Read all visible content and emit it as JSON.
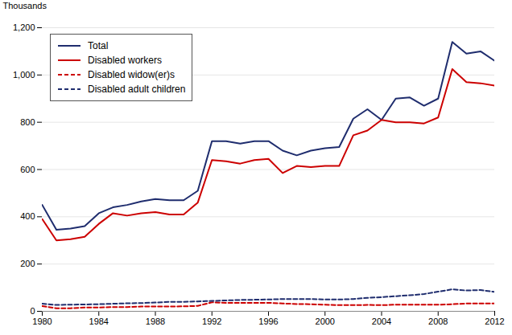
{
  "chart_data": {
    "type": "line",
    "ylabel": "Thousands",
    "x": [
      1980,
      1981,
      1982,
      1983,
      1984,
      1985,
      1986,
      1987,
      1988,
      1989,
      1990,
      1991,
      1992,
      1993,
      1994,
      1995,
      1996,
      1997,
      1998,
      1999,
      2000,
      2001,
      2002,
      2003,
      2004,
      2005,
      2006,
      2007,
      2008,
      2009,
      2010,
      2011,
      2012
    ],
    "series": [
      {
        "name": "Total",
        "color": "#1f2d6e",
        "line_style": "solid",
        "values": [
          450,
          345,
          350,
          360,
          415,
          440,
          450,
          465,
          475,
          470,
          470,
          510,
          720,
          720,
          710,
          720,
          720,
          680,
          660,
          680,
          690,
          695,
          815,
          855,
          810,
          900,
          905,
          870,
          900,
          1140,
          1090,
          1100,
          1060
        ]
      },
      {
        "name": "Disabled workers",
        "color": "#cc0000",
        "line_style": "solid",
        "values": [
          390,
          300,
          305,
          315,
          370,
          415,
          405,
          415,
          420,
          410,
          410,
          460,
          640,
          635,
          625,
          640,
          645,
          585,
          615,
          610,
          615,
          615,
          745,
          765,
          810,
          800,
          800,
          795,
          820,
          1025,
          970,
          965,
          955
        ]
      },
      {
        "name": "Disabled widow(er)s",
        "color": "#cc0000",
        "line_style": "dashed",
        "values": [
          22,
          13,
          13,
          16,
          16,
          18,
          18,
          20,
          20,
          20,
          21,
          23,
          38,
          36,
          36,
          36,
          36,
          33,
          31,
          30,
          28,
          26,
          26,
          27,
          26,
          28,
          28,
          28,
          28,
          30,
          33,
          33,
          33
        ]
      },
      {
        "name": "Disabled adult children",
        "color": "#1f2d6e",
        "line_style": "dashed",
        "values": [
          32,
          27,
          28,
          29,
          30,
          32,
          34,
          35,
          37,
          40,
          40,
          42,
          44,
          46,
          48,
          49,
          50,
          52,
          52,
          52,
          50,
          50,
          52,
          57,
          60,
          64,
          68,
          73,
          83,
          93,
          88,
          90,
          82
        ]
      }
    ],
    "xlim": [
      1980,
      2012
    ],
    "xticks": [
      1980,
      1984,
      1988,
      1992,
      1996,
      2000,
      2004,
      2008,
      2012
    ],
    "ylim": [
      0,
      1200
    ],
    "yticks": [
      0,
      200,
      400,
      600,
      800,
      {
        "value": 1000,
        "label": "1,000"
      },
      {
        "value": 1200,
        "label": "1,200"
      }
    ],
    "grid": true,
    "legend": "upper left"
  }
}
